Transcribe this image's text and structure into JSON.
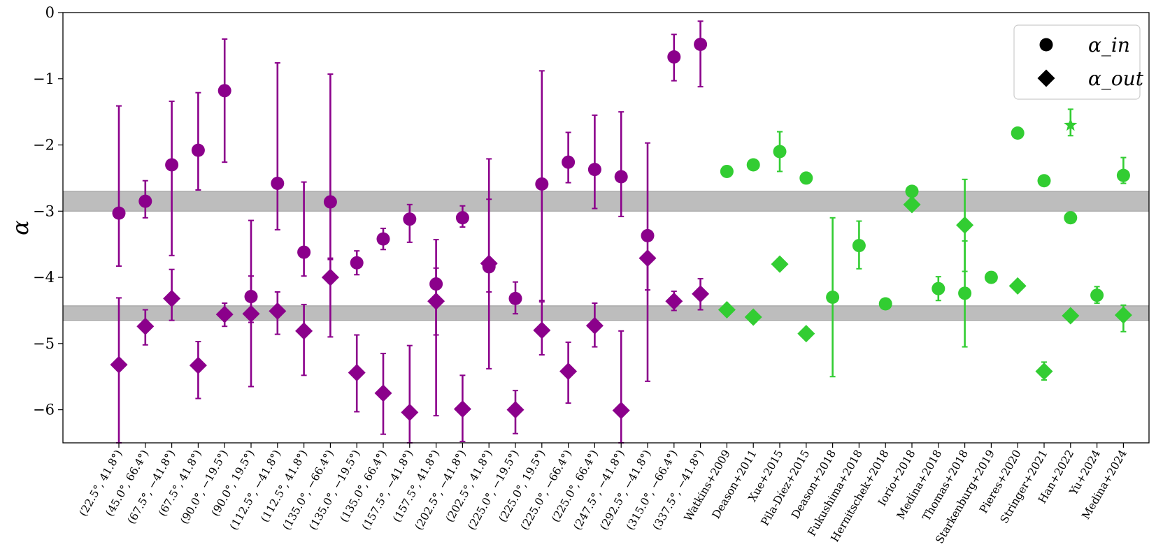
{
  "chart_data": {
    "type": "scatter",
    "title": "",
    "xlabel": "",
    "ylabel": "α",
    "ylim": [
      -6.5,
      0
    ],
    "yticks": [
      0,
      -1,
      -2,
      -3,
      -4,
      -5,
      -6
    ],
    "ytick_labels": [
      "0",
      "−1",
      "−2",
      "−3",
      "−4",
      "−5",
      "−6"
    ],
    "grid": false,
    "legend_position": "top-right",
    "legend": [
      {
        "marker": "circle",
        "label": "α_in"
      },
      {
        "marker": "diamond",
        "label": "α_out"
      }
    ],
    "bands": [
      {
        "y0": -3.0,
        "y1": -2.7,
        "color": "#bdbdbd"
      },
      {
        "y0": -4.65,
        "y1": -4.43,
        "color": "#bdbdbd"
      }
    ],
    "colors": {
      "regions": "#8b008b",
      "literature": "#32cd32"
    },
    "categories": [
      {
        "label": "(22.5°, 41.8°)",
        "group": "regions",
        "alpha_in": {
          "v": -3.03,
          "lo": -3.83,
          "hi": -1.41
        },
        "alpha_out": {
          "v": -5.32,
          "lo": -6.5,
          "hi": -4.31
        }
      },
      {
        "label": "(45.0°, 66.4°)",
        "group": "regions",
        "alpha_in": {
          "v": -2.85,
          "lo": -3.1,
          "hi": -2.54
        },
        "alpha_out": {
          "v": -4.74,
          "lo": -5.02,
          "hi": -4.49
        }
      },
      {
        "label": "(67.5°, −41.8°)",
        "group": "regions",
        "alpha_in": {
          "v": -2.3,
          "lo": -3.67,
          "hi": -1.34
        },
        "alpha_out": {
          "v": -4.32,
          "lo": -4.65,
          "hi": -3.88
        }
      },
      {
        "label": "(67.5°, 41.8°)",
        "group": "regions",
        "alpha_in": {
          "v": -2.08,
          "lo": -2.68,
          "hi": -1.21
        },
        "alpha_out": {
          "v": -5.33,
          "lo": -5.83,
          "hi": -4.97
        }
      },
      {
        "label": "(90.0°, −19.5°)",
        "group": "regions",
        "alpha_in": {
          "v": -1.18,
          "lo": -2.26,
          "hi": -0.4
        },
        "alpha_out": {
          "v": -4.56,
          "lo": -4.74,
          "hi": -4.39
        }
      },
      {
        "label": "(90.0°, 19.5°)",
        "group": "regions",
        "alpha_in": {
          "v": -4.29,
          "lo": -4.68,
          "hi": -3.98
        },
        "alpha_out": {
          "v": -4.55,
          "lo": -5.65,
          "hi": -3.14
        }
      },
      {
        "label": "(112.5°, −41.8°)",
        "group": "regions",
        "alpha_in": {
          "v": -2.58,
          "lo": -3.28,
          "hi": -0.76
        },
        "alpha_out": {
          "v": -4.51,
          "lo": -4.86,
          "hi": -4.22
        }
      },
      {
        "label": "(112.5°, 41.8°)",
        "group": "regions",
        "alpha_in": {
          "v": -3.62,
          "lo": -3.98,
          "hi": -2.56
        },
        "alpha_out": {
          "v": -4.81,
          "lo": -5.48,
          "hi": -4.41
        }
      },
      {
        "label": "(135.0°, −66.4°)",
        "group": "regions",
        "alpha_in": {
          "v": -2.86,
          "lo": -3.71,
          "hi": -0.93
        },
        "alpha_out": {
          "v": -4.0,
          "lo": -4.9,
          "hi": -3.73
        }
      },
      {
        "label": "(135.0°, −19.5°)",
        "group": "regions",
        "alpha_in": {
          "v": -3.78,
          "lo": -3.96,
          "hi": -3.6
        },
        "alpha_out": {
          "v": -5.44,
          "lo": -6.03,
          "hi": -4.87
        }
      },
      {
        "label": "(135.0°, 66.4°)",
        "group": "regions",
        "alpha_in": {
          "v": -3.42,
          "lo": -3.58,
          "hi": -3.26
        },
        "alpha_out": {
          "v": -5.75,
          "lo": -6.37,
          "hi": -5.15
        }
      },
      {
        "label": "(157.5°, −41.8°)",
        "group": "regions",
        "alpha_in": {
          "v": -3.12,
          "lo": -3.47,
          "hi": -2.9
        },
        "alpha_out": {
          "v": -6.04,
          "lo": -6.5,
          "hi": -5.03
        }
      },
      {
        "label": "(157.5°, 41.8°)",
        "group": "regions",
        "alpha_in": {
          "v": -4.1,
          "lo": -4.87,
          "hi": -3.86
        },
        "alpha_out": {
          "v": -4.36,
          "lo": -6.09,
          "hi": -3.43
        }
      },
      {
        "label": "(202.5°, −41.8°)",
        "group": "regions",
        "alpha_in": {
          "v": -3.1,
          "lo": -3.24,
          "hi": -2.92
        },
        "alpha_out": {
          "v": -5.99,
          "lo": -6.48,
          "hi": -5.48
        }
      },
      {
        "label": "(202.5°, 41.8°)",
        "group": "regions",
        "alpha_in": {
          "v": -3.84,
          "lo": -4.22,
          "hi": -2.82
        },
        "alpha_out": {
          "v": -3.79,
          "lo": -5.38,
          "hi": -2.21
        }
      },
      {
        "label": "(225.0°, −19.5°)",
        "group": "regions",
        "alpha_in": {
          "v": -4.32,
          "lo": -4.55,
          "hi": -4.07
        },
        "alpha_out": {
          "v": -6.0,
          "lo": -6.36,
          "hi": -5.71
        }
      },
      {
        "label": "(225.0°, 19.5°)",
        "group": "regions",
        "alpha_in": {
          "v": -2.59,
          "lo": -4.35,
          "hi": -0.88
        },
        "alpha_out": {
          "v": -4.8,
          "lo": -5.17,
          "hi": -4.37
        }
      },
      {
        "label": "(225.0°, −66.4°)",
        "group": "regions",
        "alpha_in": {
          "v": -2.26,
          "lo": -2.57,
          "hi": -1.81
        },
        "alpha_out": {
          "v": -5.42,
          "lo": -5.9,
          "hi": -4.98
        }
      },
      {
        "label": "(225.0°, 66.4°)",
        "group": "regions",
        "alpha_in": {
          "v": -2.37,
          "lo": -2.96,
          "hi": -1.55
        },
        "alpha_out": {
          "v": -4.73,
          "lo": -5.05,
          "hi": -4.39
        }
      },
      {
        "label": "(247.5°, −41.8°)",
        "group": "regions",
        "alpha_in": {
          "v": -2.48,
          "lo": -3.08,
          "hi": -1.5
        },
        "alpha_out": {
          "v": -6.01,
          "lo": -6.5,
          "hi": -4.81
        }
      },
      {
        "label": "(292.5°, −41.8°)",
        "group": "regions",
        "alpha_in": {
          "v": -3.37,
          "lo": -4.19,
          "hi": -1.97
        },
        "alpha_out": {
          "v": -3.71,
          "lo": -5.57,
          "hi": -3.7
        }
      },
      {
        "label": "(315.0°, −66.4°)",
        "group": "regions",
        "alpha_in": {
          "v": -0.67,
          "lo": -1.03,
          "hi": -0.33
        },
        "alpha_out": {
          "v": -4.36,
          "lo": -4.5,
          "hi": -4.21
        }
      },
      {
        "label": "(337.5°, −41.8°)",
        "group": "regions",
        "alpha_in": {
          "v": -0.48,
          "lo": -1.12,
          "hi": -0.13
        },
        "alpha_out": {
          "v": -4.25,
          "lo": -4.49,
          "hi": -4.02
        }
      },
      {
        "label": "Watkins+2009",
        "group": "literature",
        "alpha_in": {
          "v": -2.4
        },
        "alpha_out": {
          "v": -4.49
        }
      },
      {
        "label": "Deason+2011",
        "group": "literature",
        "alpha_in": {
          "v": -2.3
        },
        "alpha_out": {
          "v": -4.6
        }
      },
      {
        "label": "Xue+2015",
        "group": "literature",
        "alpha_in": {
          "v": -2.1,
          "lo": -2.4,
          "hi": -1.8
        },
        "alpha_out": {
          "v": -3.8
        }
      },
      {
        "label": "Pila-Díez+2015",
        "group": "literature",
        "alpha_in": {
          "v": -2.5
        },
        "alpha_out": {
          "v": -4.85
        }
      },
      {
        "label": "Deason+2018",
        "group": "literature",
        "alpha_in": {
          "v": -4.3,
          "lo": -5.5,
          "hi": -3.1
        }
      },
      {
        "label": "Fukushima+2018",
        "group": "literature",
        "alpha_in": {
          "v": -3.52,
          "lo": -3.87,
          "hi": -3.15
        }
      },
      {
        "label": "Hernitschek+2018",
        "group": "literature",
        "alpha_in": {
          "v": -4.4
        }
      },
      {
        "label": "Iorio+2018",
        "group": "literature",
        "alpha_in": {
          "v": -2.7
        },
        "alpha_out": {
          "v": -2.9
        }
      },
      {
        "label": "Medina+2018",
        "group": "literature",
        "alpha_in": {
          "v": -4.17,
          "lo": -4.35,
          "hi": -3.99
        }
      },
      {
        "label": "Thomas+2018",
        "group": "literature",
        "alpha_in": {
          "v": -4.24,
          "lo": -5.05,
          "hi": -3.45
        },
        "alpha_out": {
          "v": -3.21,
          "lo": -3.91,
          "hi": -2.52
        }
      },
      {
        "label": "Starkenburg+2019",
        "group": "literature",
        "alpha_in": {
          "v": -4.0
        }
      },
      {
        "label": "Pieres+2020",
        "group": "literature",
        "alpha_in": {
          "v": -1.82
        },
        "alpha_out": {
          "v": -4.13
        }
      },
      {
        "label": "Stringer+2021",
        "group": "literature",
        "alpha_in": {
          "v": -2.54
        },
        "alpha_out": {
          "v": -5.42,
          "lo": -5.55,
          "hi": -5.28
        }
      },
      {
        "label": "Han+2022",
        "group": "literature",
        "alpha_in": {
          "v": -3.1
        },
        "alpha_out": {
          "v": -4.58
        },
        "alpha_star": {
          "v": -1.7,
          "lo": -1.86,
          "hi": -1.46
        }
      },
      {
        "label": "Yu+2024",
        "group": "literature",
        "alpha_in": {
          "v": -4.27,
          "lo": -4.39,
          "hi": -4.14
        }
      },
      {
        "label": "Medina+2024",
        "group": "literature",
        "alpha_in": {
          "v": -2.46,
          "lo": -2.58,
          "hi": -2.19
        },
        "alpha_out": {
          "v": -4.57,
          "lo": -4.82,
          "hi": -4.42
        }
      }
    ]
  }
}
